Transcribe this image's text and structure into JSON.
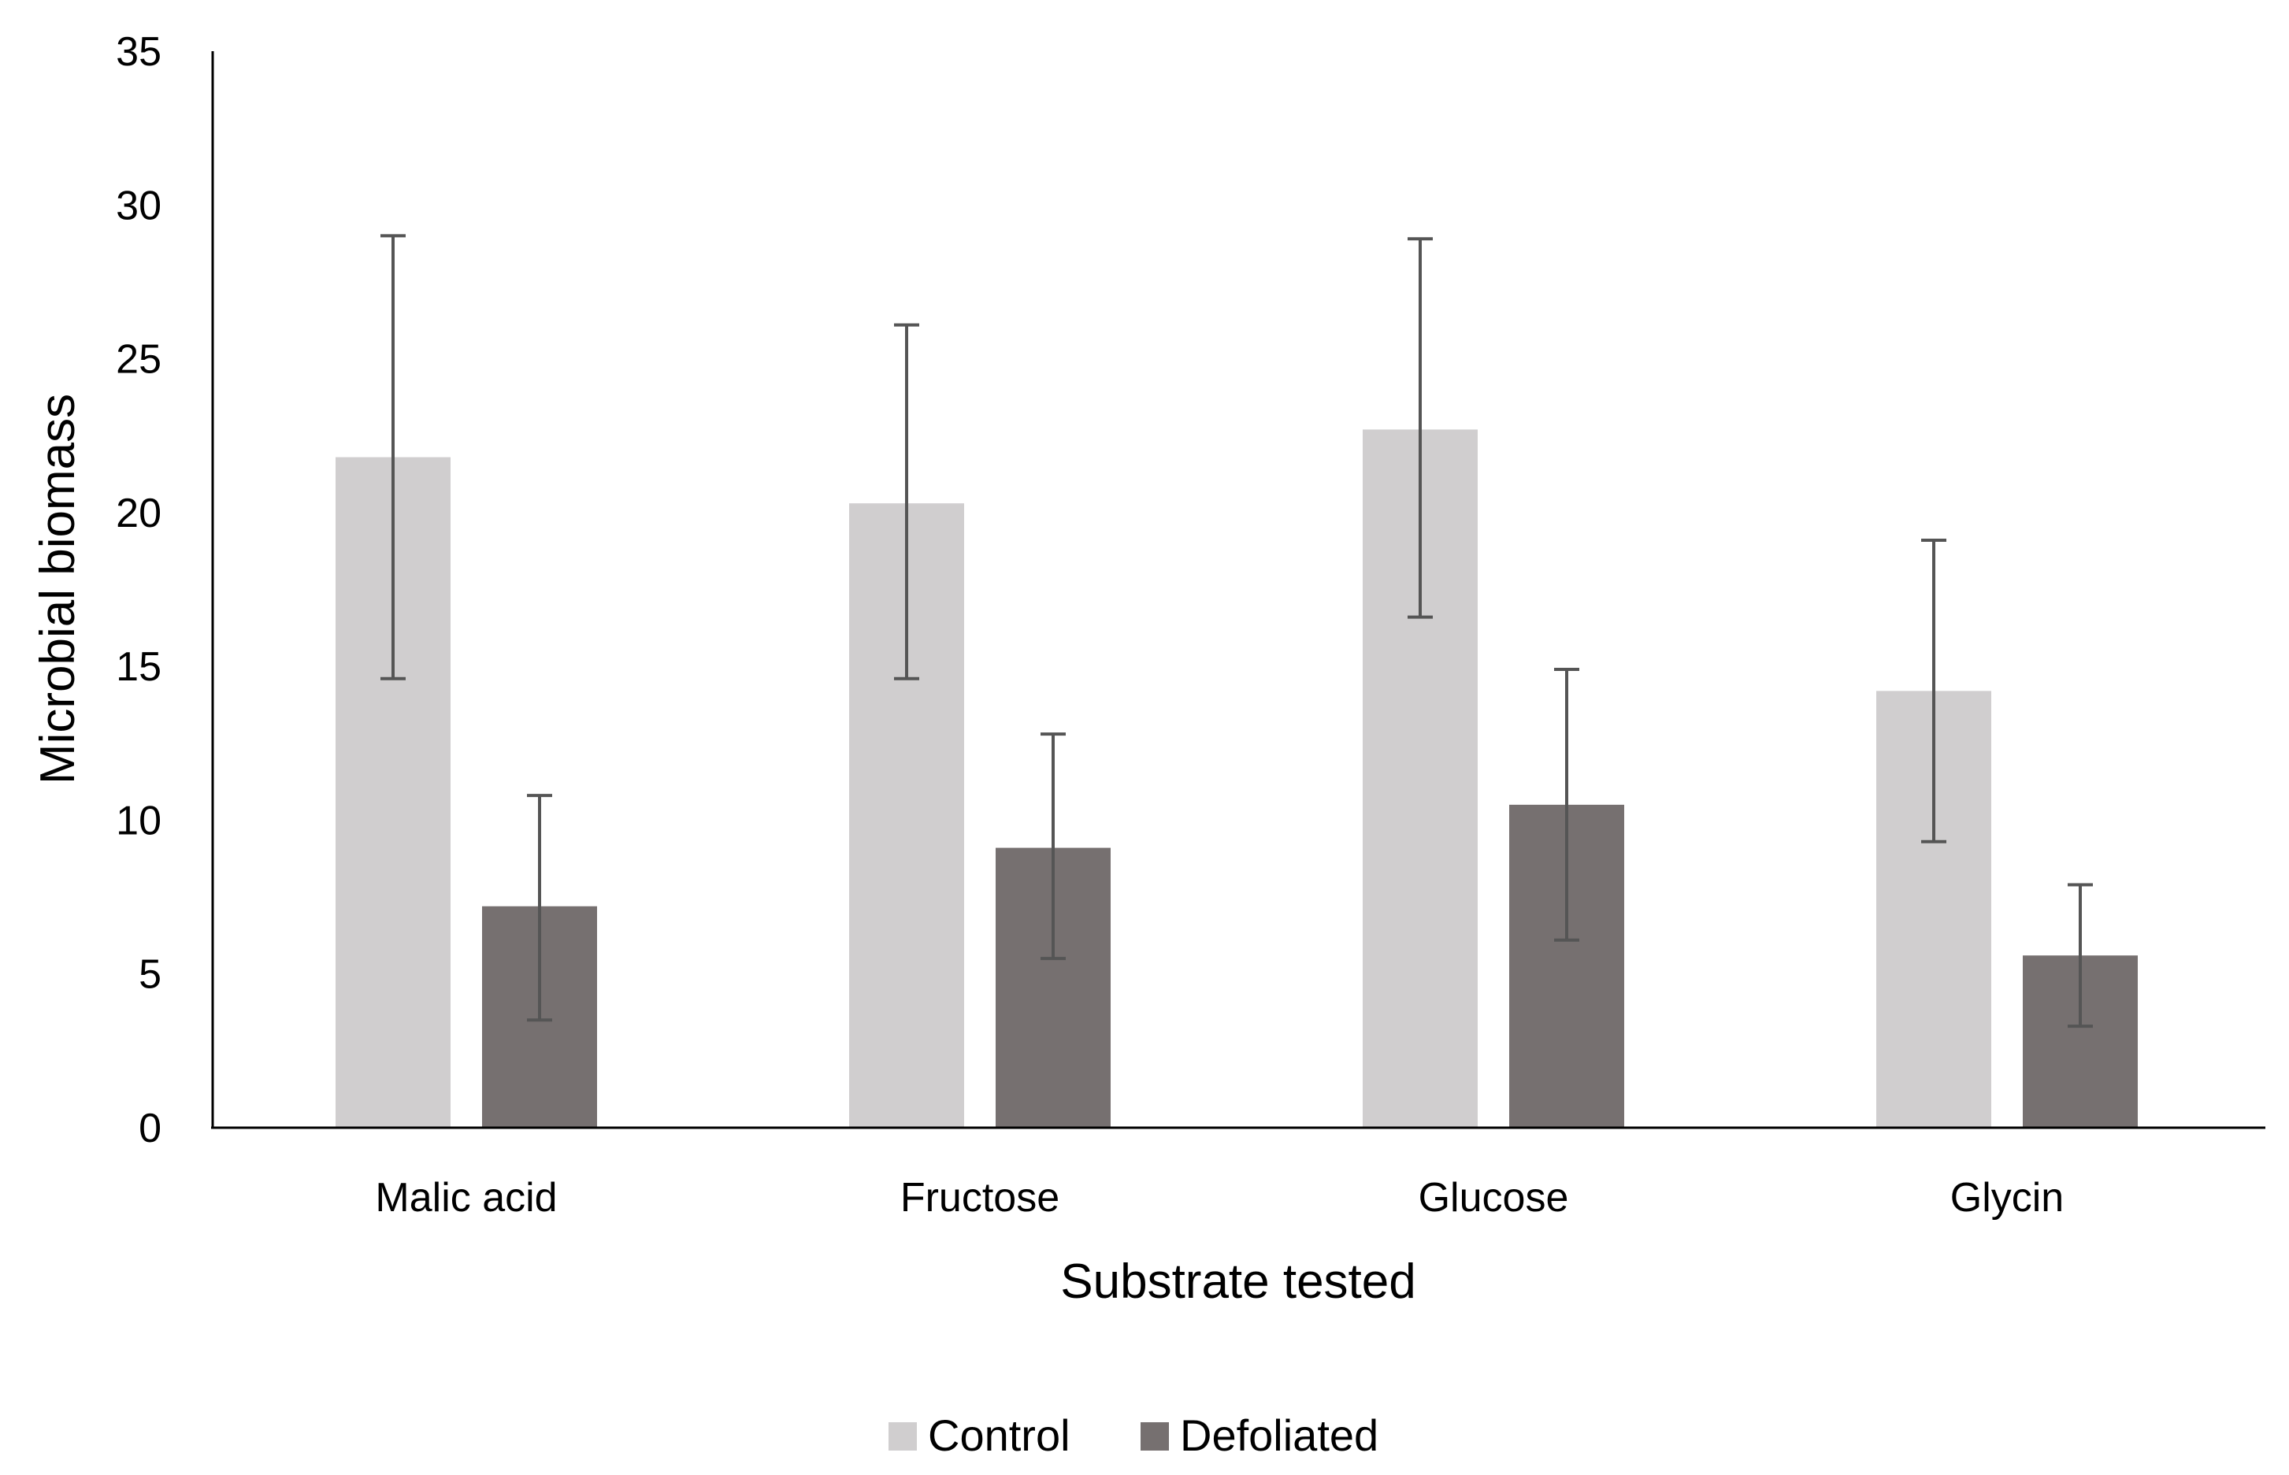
{
  "chart_data": {
    "type": "bar",
    "title": "",
    "xlabel": "Substrate tested",
    "ylabel": "Microbial biomass",
    "ylim": [
      0,
      35
    ],
    "yticks": [
      0,
      5,
      10,
      15,
      20,
      25,
      30,
      35
    ],
    "categories": [
      "Malic acid",
      "Fructose",
      "Glucose",
      "Glycin"
    ],
    "grid": false,
    "legend_position": "bottom",
    "series": [
      {
        "name": "Control",
        "color": "#D0CECF",
        "values": [
          21.8,
          20.3,
          22.7,
          14.2
        ],
        "error_upper": [
          29.0,
          26.1,
          28.9,
          19.1
        ],
        "error_lower": [
          14.6,
          14.6,
          16.6,
          9.3
        ]
      },
      {
        "name": "Defoliated",
        "color": "#767070",
        "values": [
          7.2,
          9.1,
          10.5,
          5.6
        ],
        "error_upper": [
          10.8,
          12.8,
          14.9,
          7.9
        ],
        "error_lower": [
          3.5,
          5.5,
          6.1,
          3.3
        ]
      }
    ],
    "error_bar_color": "#555555"
  }
}
